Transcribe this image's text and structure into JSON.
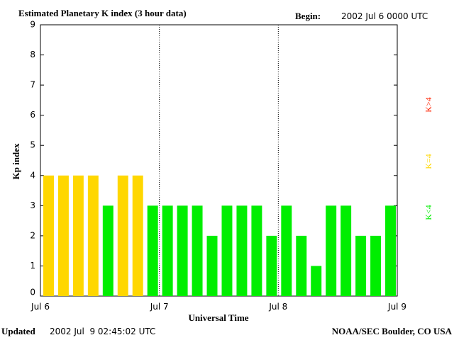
{
  "chart_data": {
    "type": "bar",
    "title": "Estimated Planetary K index (3 hour data)",
    "begin_label": "Begin:",
    "begin": "2002 Jul 6 0000 UTC",
    "y_label": "Kp index",
    "x_label": "Universal Time",
    "updated_label": "Updated",
    "updated": "2002 Jul  9 02:45:02 UTC",
    "credit": "NOAA/SEC Boulder, CO USA",
    "values": [
      4,
      4,
      4,
      4,
      3,
      4,
      4,
      3,
      3,
      3,
      3,
      2,
      3,
      3,
      3,
      2,
      3,
      2,
      1,
      3,
      3,
      2,
      2,
      3
    ],
    "bar_colors": [
      "#ffd700",
      "#ffd700",
      "#ffd700",
      "#ffd700",
      "#00ee00",
      "#ffd700",
      "#ffd700",
      "#00ee00",
      "#00ee00",
      "#00ee00",
      "#00ee00",
      "#00ee00",
      "#00ee00",
      "#00ee00",
      "#00ee00",
      "#00ee00",
      "#00ee00",
      "#00ee00",
      "#00ee00",
      "#00ee00",
      "#00ee00",
      "#00ee00",
      "#00ee00",
      "#00ee00"
    ],
    "ylim": [
      0,
      9
    ],
    "yticks": [
      0,
      1,
      2,
      3,
      4,
      5,
      6,
      7,
      8,
      9
    ],
    "xlim": [
      0,
      3
    ],
    "xticks": [
      {
        "value": 0,
        "label": "Jul 6"
      },
      {
        "value": 1,
        "label": "Jul 7"
      },
      {
        "value": 2,
        "label": "Jul 8"
      },
      {
        "value": 3,
        "label": "Jul 9"
      }
    ],
    "legend": [
      {
        "name": "K<4",
        "color": "#00ee00"
      },
      {
        "name": "K=4",
        "color": "#ffd700"
      },
      {
        "name": "K>4",
        "color": "#ff2200"
      }
    ]
  }
}
